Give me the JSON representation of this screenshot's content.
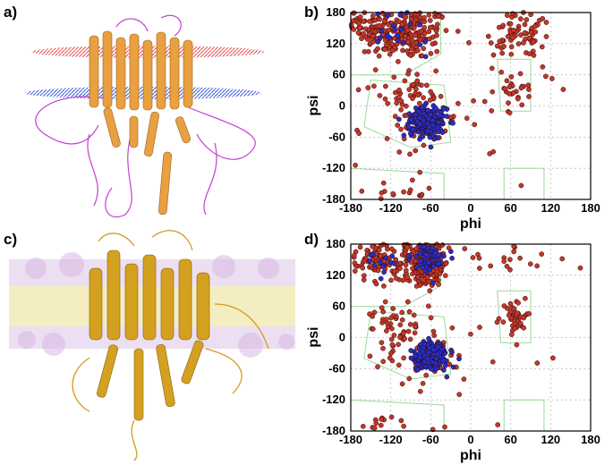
{
  "panels": {
    "a": "a)",
    "b": "b)",
    "c": "c)",
    "d": "d)"
  },
  "colors": {
    "favored_residue": "#c0392b",
    "core_residue": "#2430c8",
    "contour": "#9ad89a",
    "membrane_top": "#e05050",
    "membrane_bottom": "#3a5ad8",
    "helix": "#e8a040",
    "coil": "#c040d0",
    "bilayer": "#eadcf0"
  },
  "chart_data": [
    {
      "type": "scatter",
      "panel": "b",
      "title": "",
      "xlabel": "phi",
      "ylabel": "psi",
      "xlim": [
        -180,
        180
      ],
      "ylim": [
        -180,
        180
      ],
      "xticks": [
        "-180",
        "-120",
        "-60",
        "0",
        "60",
        "120",
        "180"
      ],
      "yticks": [
        "180",
        "120",
        "60",
        "0",
        "-60",
        "-120",
        "-180"
      ],
      "grid": true,
      "series": [
        {
          "color": "red",
          "clusters": [
            {
              "cx": -100,
              "cy": 140,
              "sx": 35,
              "sy": 25,
              "n": 200
            },
            {
              "cx": -150,
              "cy": 160,
              "sx": 20,
              "sy": 15,
              "n": 40
            },
            {
              "cx": 75,
              "cy": 140,
              "sx": 20,
              "sy": 25,
              "n": 70
            },
            {
              "cx": -75,
              "cy": -30,
              "sx": 25,
              "sy": 25,
              "n": 60
            },
            {
              "cx": -95,
              "cy": 30,
              "sx": 25,
              "sy": 25,
              "n": 40
            },
            {
              "cx": 65,
              "cy": 25,
              "sx": 12,
              "sy": 20,
              "n": 25
            },
            {
              "cx": -120,
              "cy": -170,
              "sx": 30,
              "sy": 10,
              "n": 15
            },
            {
              "cx": 0,
              "cy": 0,
              "sx": 100,
              "sy": 90,
              "n": 25
            }
          ]
        },
        {
          "color": "blue",
          "clusters": [
            {
              "cx": -65,
              "cy": -30,
              "sx": 14,
              "sy": 14,
              "n": 230
            },
            {
              "cx": -110,
              "cy": 140,
              "sx": 25,
              "sy": 20,
              "n": 20
            }
          ]
        }
      ]
    },
    {
      "type": "scatter",
      "panel": "d",
      "title": "",
      "xlabel": "phi",
      "ylabel": "psi",
      "xlim": [
        -180,
        180
      ],
      "ylim": [
        -180,
        180
      ],
      "xticks": [
        "-180",
        "-120",
        "-60",
        "0",
        "60",
        "120",
        "180"
      ],
      "yticks": [
        "180",
        "120",
        "60",
        "0",
        "-60",
        "-120",
        "-180"
      ],
      "grid": true,
      "series": [
        {
          "color": "red",
          "clusters": [
            {
              "cx": -70,
              "cy": 145,
              "sx": 15,
              "sy": 20,
              "n": 260
            },
            {
              "cx": -140,
              "cy": 150,
              "sx": 20,
              "sy": 20,
              "n": 90
            },
            {
              "cx": 65,
              "cy": 40,
              "sx": 10,
              "sy": 18,
              "n": 40
            },
            {
              "cx": -110,
              "cy": 30,
              "sx": 25,
              "sy": 25,
              "n": 50
            },
            {
              "cx": -80,
              "cy": -40,
              "sx": 25,
              "sy": 25,
              "n": 40
            },
            {
              "cx": 60,
              "cy": 160,
              "sx": 40,
              "sy": 20,
              "n": 20
            },
            {
              "cx": 0,
              "cy": -40,
              "sx": 100,
              "sy": 100,
              "n": 25
            },
            {
              "cx": -130,
              "cy": -165,
              "sx": 25,
              "sy": 10,
              "n": 12
            }
          ]
        },
        {
          "color": "blue",
          "clusters": [
            {
              "cx": -60,
              "cy": -35,
              "sx": 13,
              "sy": 13,
              "n": 260
            },
            {
              "cx": -60,
              "cy": 150,
              "sx": 12,
              "sy": 15,
              "n": 60
            },
            {
              "cx": -130,
              "cy": 140,
              "sx": 15,
              "sy": 15,
              "n": 15
            }
          ]
        }
      ]
    }
  ]
}
